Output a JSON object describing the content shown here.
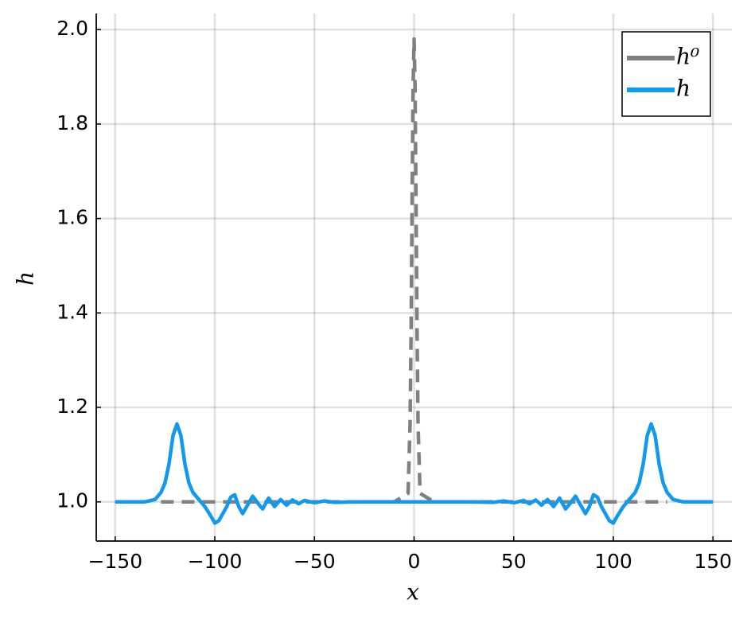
{
  "chart_data": {
    "type": "line",
    "x_label": "x",
    "y_label": "h",
    "xlim": [
      -159.5,
      159.5
    ],
    "ylim": [
      0.917,
      2.034
    ],
    "xticks": [
      {
        "value": -150,
        "label": "−150"
      },
      {
        "value": -100,
        "label": "−100"
      },
      {
        "value": -50,
        "label": "−50"
      },
      0,
      50,
      100,
      150
    ],
    "yticks": [
      {
        "value": 1.0,
        "label": "1.0"
      },
      1.2,
      1.4,
      1.6,
      1.8,
      {
        "value": 2.0,
        "label": "2.0"
      }
    ],
    "grid": true,
    "legend": "top-right",
    "series": [
      {
        "name": "h⁰",
        "color": "#808080",
        "dashed": true,
        "x": [
          -127,
          -10,
          -3,
          -2,
          -1.5,
          -1,
          -0.5,
          0,
          0.5,
          1,
          1.5,
          2,
          3,
          10,
          127
        ],
        "values": [
          1,
          1,
          1.018,
          1.166,
          1.361,
          1.628,
          1.877,
          1.98,
          1.877,
          1.628,
          1.361,
          1.166,
          1.018,
          1,
          1
        ]
      },
      {
        "name": "h",
        "color": "#0f9af0",
        "dashed": false,
        "x": [
          -150,
          -135,
          -130,
          -127,
          -125,
          -123,
          -121,
          -119,
          -117,
          -115,
          -113,
          -111,
          -108,
          -105,
          -102,
          -100,
          -98,
          -96,
          -94,
          -92,
          -90,
          -88,
          -86,
          -84,
          -81,
          -78,
          -76,
          -73,
          -70,
          -67,
          -64,
          -61,
          -58,
          -55,
          -50,
          -45,
          -40,
          -30,
          30,
          40,
          45,
          50,
          55,
          58,
          61,
          64,
          67,
          70,
          73,
          76,
          78,
          81,
          84,
          86,
          88,
          90,
          92,
          94,
          96,
          98,
          100,
          102,
          105,
          108,
          111,
          113,
          115,
          117,
          119,
          121,
          123,
          125,
          127,
          130,
          135,
          150
        ],
        "values": [
          1,
          1,
          1.005,
          1.02,
          1.04,
          1.08,
          1.14,
          1.165,
          1.14,
          1.08,
          1.04,
          1.02,
          1.005,
          0.99,
          0.97,
          0.955,
          0.96,
          0.975,
          0.99,
          1.01,
          1.015,
          0.99,
          0.975,
          0.99,
          1.012,
          0.995,
          0.985,
          1.008,
          0.99,
          1.005,
          0.993,
          1.004,
          0.996,
          1.003,
          0.998,
          1.002,
          0.999,
          1,
          1,
          0.999,
          1.002,
          0.998,
          1.003,
          0.996,
          1.004,
          0.993,
          1.005,
          0.99,
          1.008,
          0.985,
          0.995,
          1.012,
          0.99,
          0.975,
          0.99,
          1.015,
          1.01,
          0.99,
          0.975,
          0.96,
          0.955,
          0.97,
          0.99,
          1.005,
          1.02,
          1.04,
          1.08,
          1.14,
          1.165,
          1.14,
          1.08,
          1.04,
          1.02,
          1.005,
          1,
          1
        ]
      }
    ]
  }
}
